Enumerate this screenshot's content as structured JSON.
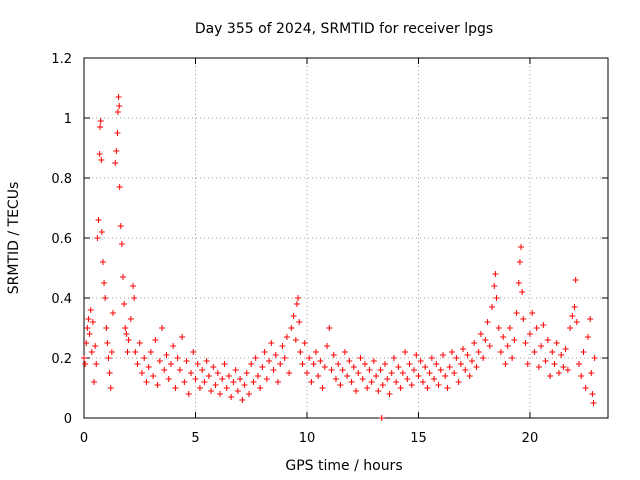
{
  "chart_data": {
    "type": "scatter",
    "title": "Day 355 of 2024, SRMTID for receiver lpgs",
    "xlabel": "GPS time / hours",
    "ylabel": "SRMTID / TECUs",
    "xlim": [
      0,
      23.5
    ],
    "ylim": [
      0,
      1.2
    ],
    "xticks": [
      0,
      5,
      10,
      15,
      20
    ],
    "xtick_labels": [
      "0",
      "5",
      "10",
      "15",
      "20"
    ],
    "yticks": [
      0,
      0.2,
      0.4,
      0.6,
      0.8,
      1,
      1.2
    ],
    "ytick_labels": [
      "0",
      "0.2",
      "0.4",
      "0.6",
      "0.8",
      "1",
      "1.2"
    ],
    "grid": true,
    "marker": "+",
    "series": [
      {
        "name": "lpgs",
        "color": "#ff0000",
        "points": [
          [
            0.0,
            0.2
          ],
          [
            0.05,
            0.18
          ],
          [
            0.1,
            0.25
          ],
          [
            0.15,
            0.3
          ],
          [
            0.2,
            0.33
          ],
          [
            0.25,
            0.28
          ],
          [
            0.3,
            0.36
          ],
          [
            0.35,
            0.22
          ],
          [
            0.4,
            0.32
          ],
          [
            0.45,
            0.12
          ],
          [
            0.5,
            0.24
          ],
          [
            0.55,
            0.18
          ],
          [
            0.6,
            0.6
          ],
          [
            0.65,
            0.66
          ],
          [
            0.7,
            0.88
          ],
          [
            0.72,
            0.97
          ],
          [
            0.75,
            0.99
          ],
          [
            0.78,
            0.86
          ],
          [
            0.8,
            0.62
          ],
          [
            0.85,
            0.52
          ],
          [
            0.9,
            0.45
          ],
          [
            0.95,
            0.4
          ],
          [
            1.0,
            0.3
          ],
          [
            1.05,
            0.25
          ],
          [
            1.1,
            0.2
          ],
          [
            1.15,
            0.15
          ],
          [
            1.2,
            0.1
          ],
          [
            1.25,
            0.22
          ],
          [
            1.3,
            0.35
          ],
          [
            1.4,
            0.85
          ],
          [
            1.45,
            0.89
          ],
          [
            1.5,
            0.95
          ],
          [
            1.52,
            1.02
          ],
          [
            1.55,
            1.07
          ],
          [
            1.58,
            1.04
          ],
          [
            1.6,
            0.77
          ],
          [
            1.65,
            0.64
          ],
          [
            1.7,
            0.58
          ],
          [
            1.75,
            0.47
          ],
          [
            1.8,
            0.38
          ],
          [
            1.85,
            0.3
          ],
          [
            1.9,
            0.28
          ],
          [
            1.95,
            0.22
          ],
          [
            2.0,
            0.26
          ],
          [
            2.1,
            0.33
          ],
          [
            2.2,
            0.44
          ],
          [
            2.25,
            0.4
          ],
          [
            2.3,
            0.22
          ],
          [
            2.4,
            0.18
          ],
          [
            2.5,
            0.25
          ],
          [
            2.6,
            0.15
          ],
          [
            2.7,
            0.2
          ],
          [
            2.8,
            0.12
          ],
          [
            2.9,
            0.17
          ],
          [
            3.0,
            0.22
          ],
          [
            3.1,
            0.14
          ],
          [
            3.2,
            0.26
          ],
          [
            3.3,
            0.11
          ],
          [
            3.4,
            0.19
          ],
          [
            3.5,
            0.3
          ],
          [
            3.6,
            0.16
          ],
          [
            3.7,
            0.21
          ],
          [
            3.8,
            0.13
          ],
          [
            3.9,
            0.18
          ],
          [
            4.0,
            0.24
          ],
          [
            4.1,
            0.1
          ],
          [
            4.2,
            0.2
          ],
          [
            4.3,
            0.16
          ],
          [
            4.4,
            0.27
          ],
          [
            4.5,
            0.12
          ],
          [
            4.6,
            0.19
          ],
          [
            4.7,
            0.08
          ],
          [
            4.8,
            0.15
          ],
          [
            4.9,
            0.22
          ],
          [
            5.0,
            0.13
          ],
          [
            5.1,
            0.18
          ],
          [
            5.2,
            0.1
          ],
          [
            5.3,
            0.16
          ],
          [
            5.4,
            0.12
          ],
          [
            5.5,
            0.19
          ],
          [
            5.6,
            0.14
          ],
          [
            5.7,
            0.09
          ],
          [
            5.8,
            0.17
          ],
          [
            5.9,
            0.11
          ],
          [
            6.0,
            0.15
          ],
          [
            6.1,
            0.08
          ],
          [
            6.2,
            0.13
          ],
          [
            6.3,
            0.18
          ],
          [
            6.4,
            0.1
          ],
          [
            6.5,
            0.14
          ],
          [
            6.6,
            0.07
          ],
          [
            6.7,
            0.12
          ],
          [
            6.8,
            0.16
          ],
          [
            6.9,
            0.09
          ],
          [
            7.0,
            0.13
          ],
          [
            7.1,
            0.06
          ],
          [
            7.2,
            0.11
          ],
          [
            7.3,
            0.15
          ],
          [
            7.4,
            0.08
          ],
          [
            7.5,
            0.18
          ],
          [
            7.6,
            0.12
          ],
          [
            7.7,
            0.2
          ],
          [
            7.8,
            0.14
          ],
          [
            7.9,
            0.1
          ],
          [
            8.0,
            0.17
          ],
          [
            8.1,
            0.22
          ],
          [
            8.2,
            0.13
          ],
          [
            8.3,
            0.19
          ],
          [
            8.4,
            0.25
          ],
          [
            8.5,
            0.16
          ],
          [
            8.6,
            0.21
          ],
          [
            8.7,
            0.12
          ],
          [
            8.8,
            0.18
          ],
          [
            8.9,
            0.24
          ],
          [
            9.0,
            0.2
          ],
          [
            9.1,
            0.27
          ],
          [
            9.2,
            0.15
          ],
          [
            9.3,
            0.3
          ],
          [
            9.4,
            0.34
          ],
          [
            9.5,
            0.26
          ],
          [
            9.55,
            0.38
          ],
          [
            9.6,
            0.4
          ],
          [
            9.65,
            0.32
          ],
          [
            9.7,
            0.22
          ],
          [
            9.8,
            0.18
          ],
          [
            9.9,
            0.25
          ],
          [
            10.0,
            0.15
          ],
          [
            10.1,
            0.2
          ],
          [
            10.2,
            0.12
          ],
          [
            10.3,
            0.18
          ],
          [
            10.4,
            0.22
          ],
          [
            10.5,
            0.14
          ],
          [
            10.6,
            0.19
          ],
          [
            10.7,
            0.1
          ],
          [
            10.8,
            0.17
          ],
          [
            10.9,
            0.24
          ],
          [
            11.0,
            0.3
          ],
          [
            11.1,
            0.16
          ],
          [
            11.2,
            0.21
          ],
          [
            11.3,
            0.13
          ],
          [
            11.4,
            0.18
          ],
          [
            11.5,
            0.11
          ],
          [
            11.6,
            0.16
          ],
          [
            11.7,
            0.22
          ],
          [
            11.8,
            0.14
          ],
          [
            11.9,
            0.19
          ],
          [
            12.0,
            0.12
          ],
          [
            12.1,
            0.17
          ],
          [
            12.2,
            0.09
          ],
          [
            12.3,
            0.15
          ],
          [
            12.4,
            0.2
          ],
          [
            12.5,
            0.13
          ],
          [
            12.6,
            0.18
          ],
          [
            12.7,
            0.1
          ],
          [
            12.8,
            0.16
          ],
          [
            12.9,
            0.12
          ],
          [
            13.0,
            0.19
          ],
          [
            13.1,
            0.14
          ],
          [
            13.2,
            0.09
          ],
          [
            13.3,
            0.16
          ],
          [
            13.35,
            0.0
          ],
          [
            13.4,
            0.11
          ],
          [
            13.5,
            0.18
          ],
          [
            13.6,
            0.13
          ],
          [
            13.7,
            0.08
          ],
          [
            13.8,
            0.15
          ],
          [
            13.9,
            0.2
          ],
          [
            14.0,
            0.12
          ],
          [
            14.1,
            0.17
          ],
          [
            14.2,
            0.1
          ],
          [
            14.3,
            0.15
          ],
          [
            14.4,
            0.22
          ],
          [
            14.5,
            0.13
          ],
          [
            14.6,
            0.18
          ],
          [
            14.7,
            0.11
          ],
          [
            14.8,
            0.16
          ],
          [
            14.9,
            0.21
          ],
          [
            15.0,
            0.14
          ],
          [
            15.1,
            0.19
          ],
          [
            15.2,
            0.12
          ],
          [
            15.3,
            0.17
          ],
          [
            15.4,
            0.1
          ],
          [
            15.5,
            0.15
          ],
          [
            15.6,
            0.2
          ],
          [
            15.7,
            0.13
          ],
          [
            15.8,
            0.18
          ],
          [
            15.9,
            0.11
          ],
          [
            16.0,
            0.16
          ],
          [
            16.1,
            0.21
          ],
          [
            16.2,
            0.14
          ],
          [
            16.3,
            0.1
          ],
          [
            16.4,
            0.17
          ],
          [
            16.5,
            0.22
          ],
          [
            16.6,
            0.15
          ],
          [
            16.7,
            0.2
          ],
          [
            16.8,
            0.12
          ],
          [
            16.9,
            0.18
          ],
          [
            17.0,
            0.23
          ],
          [
            17.1,
            0.16
          ],
          [
            17.2,
            0.21
          ],
          [
            17.3,
            0.14
          ],
          [
            17.4,
            0.19
          ],
          [
            17.5,
            0.25
          ],
          [
            17.6,
            0.17
          ],
          [
            17.7,
            0.22
          ],
          [
            17.8,
            0.28
          ],
          [
            17.9,
            0.2
          ],
          [
            18.0,
            0.26
          ],
          [
            18.1,
            0.32
          ],
          [
            18.2,
            0.24
          ],
          [
            18.3,
            0.37
          ],
          [
            18.4,
            0.44
          ],
          [
            18.45,
            0.48
          ],
          [
            18.5,
            0.4
          ],
          [
            18.6,
            0.3
          ],
          [
            18.7,
            0.22
          ],
          [
            18.8,
            0.27
          ],
          [
            18.9,
            0.18
          ],
          [
            19.0,
            0.24
          ],
          [
            19.1,
            0.3
          ],
          [
            19.2,
            0.2
          ],
          [
            19.3,
            0.26
          ],
          [
            19.4,
            0.35
          ],
          [
            19.5,
            0.45
          ],
          [
            19.55,
            0.52
          ],
          [
            19.6,
            0.57
          ],
          [
            19.65,
            0.42
          ],
          [
            19.7,
            0.33
          ],
          [
            19.8,
            0.25
          ],
          [
            19.9,
            0.18
          ],
          [
            20.0,
            0.28
          ],
          [
            20.1,
            0.35
          ],
          [
            20.2,
            0.22
          ],
          [
            20.3,
            0.3
          ],
          [
            20.4,
            0.17
          ],
          [
            20.5,
            0.24
          ],
          [
            20.6,
            0.31
          ],
          [
            20.7,
            0.19
          ],
          [
            20.8,
            0.26
          ],
          [
            20.9,
            0.14
          ],
          [
            21.0,
            0.22
          ],
          [
            21.1,
            0.18
          ],
          [
            21.2,
            0.25
          ],
          [
            21.3,
            0.15
          ],
          [
            21.4,
            0.21
          ],
          [
            21.5,
            0.17
          ],
          [
            21.6,
            0.23
          ],
          [
            21.7,
            0.16
          ],
          [
            21.8,
            0.3
          ],
          [
            21.9,
            0.34
          ],
          [
            22.0,
            0.37
          ],
          [
            22.05,
            0.46
          ],
          [
            22.1,
            0.32
          ],
          [
            22.2,
            0.18
          ],
          [
            22.3,
            0.14
          ],
          [
            22.4,
            0.22
          ],
          [
            22.5,
            0.1
          ],
          [
            22.6,
            0.27
          ],
          [
            22.7,
            0.33
          ],
          [
            22.75,
            0.15
          ],
          [
            22.8,
            0.08
          ],
          [
            22.85,
            0.05
          ],
          [
            22.9,
            0.2
          ]
        ]
      }
    ]
  }
}
